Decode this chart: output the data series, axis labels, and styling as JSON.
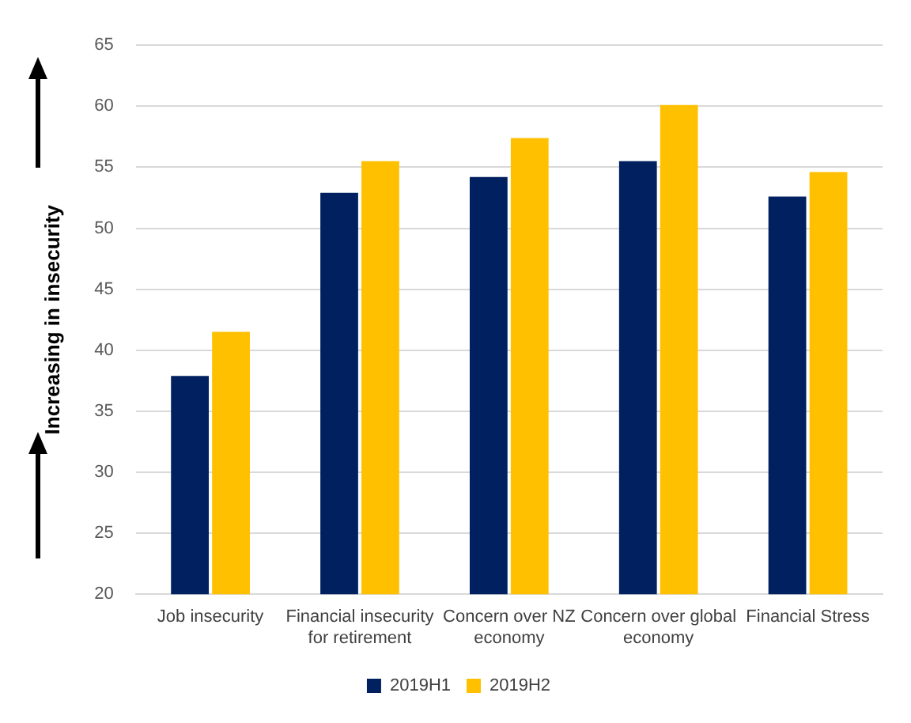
{
  "chart_data": {
    "type": "bar",
    "ylabel": "Increasing in insecurity",
    "categories": [
      "Job insecurity",
      "Financial insecurity for retirement",
      "Concern over NZ economy",
      "Concern over global economy",
      "Financial Stress"
    ],
    "series": [
      {
        "name": "2019H1",
        "color": "#002060",
        "values": [
          37.9,
          52.9,
          54.2,
          55.5,
          52.6
        ]
      },
      {
        "name": "2019H2",
        "color": "#ffc000",
        "values": [
          41.5,
          55.5,
          57.4,
          60.1,
          54.6
        ]
      }
    ],
    "ylim": [
      20,
      65
    ],
    "yticks": [
      20,
      25,
      30,
      35,
      40,
      45,
      50,
      55,
      60,
      65
    ],
    "grid": "y",
    "legend": "bottom"
  }
}
